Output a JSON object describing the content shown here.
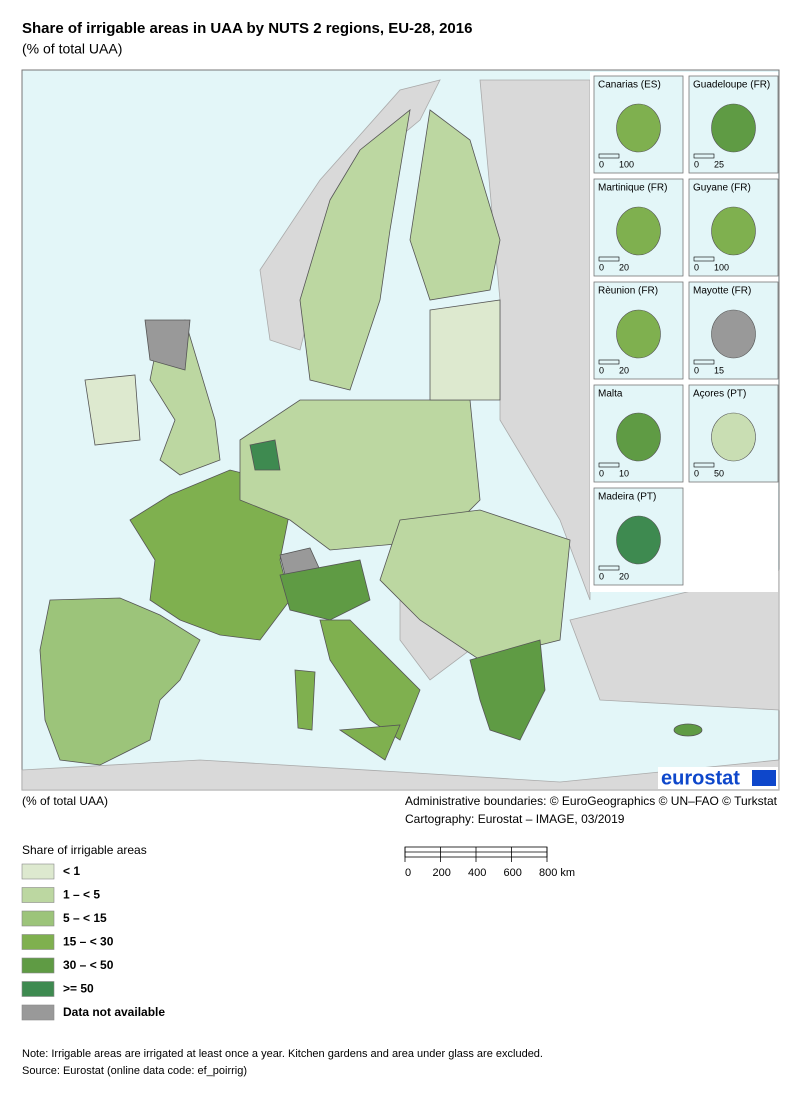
{
  "header": {
    "title": "Share of irrigable areas in UAA by NUTS 2 regions, EU-28, 2016",
    "subtitle": "(% of total UAA)"
  },
  "map": {
    "logo": "eurostat",
    "insets": [
      {
        "name": "Canarias (ES)",
        "scale": [
          "0",
          "100"
        ],
        "color": "#7fb04f"
      },
      {
        "name": "Guadeloupe (FR)",
        "scale": [
          "0",
          "25"
        ],
        "color": "#5f9b44"
      },
      {
        "name": "Martinique (FR)",
        "scale": [
          "0",
          "20"
        ],
        "color": "#7fb04f"
      },
      {
        "name": "Guyane (FR)",
        "scale": [
          "0",
          "100"
        ],
        "color": "#7fb04f"
      },
      {
        "name": "Rèunion (FR)",
        "scale": [
          "0",
          "20"
        ],
        "color": "#7fb04f"
      },
      {
        "name": "Mayotte (FR)",
        "scale": [
          "0",
          "15"
        ],
        "color": "#999999"
      },
      {
        "name": "Malta",
        "scale": [
          "0",
          "10"
        ],
        "color": "#5f9b44"
      },
      {
        "name": "Açores (PT)",
        "scale": [
          "0",
          "50"
        ],
        "color": "#c9deb3"
      },
      {
        "name": "Madeira (PT)",
        "scale": [
          "0",
          "20"
        ],
        "color": "#3e8a50"
      }
    ]
  },
  "unit_note": "(% of total UAA)",
  "credits": [
    "Administrative boundaries: © EuroGeographics © UN–FAO © Turkstat",
    "Cartography: Eurostat – IMAGE, 03/2019"
  ],
  "legend": {
    "title": "Share of irrigable areas",
    "items": [
      {
        "label": "< 1",
        "color": "#dde9cf"
      },
      {
        "label": "1 – < 5",
        "color": "#bcd7a1"
      },
      {
        "label": "5 – < 15",
        "color": "#9cc47a"
      },
      {
        "label": "15 – < 30",
        "color": "#7fb04f"
      },
      {
        "label": "30 – < 50",
        "color": "#5f9b44"
      },
      {
        "label": ">= 50",
        "color": "#3e8a50"
      },
      {
        "label": "Data not available",
        "color": "#999999"
      }
    ]
  },
  "scale_bar": {
    "labels": [
      "0",
      "200",
      "400",
      "600",
      "800 km"
    ]
  },
  "notes": [
    "Note: Irrigable areas are irrigated at least once a year. Kitchen gardens and area under glass are excluded.",
    "Source: Eurostat (online data code: ef_poirrig)"
  ]
}
